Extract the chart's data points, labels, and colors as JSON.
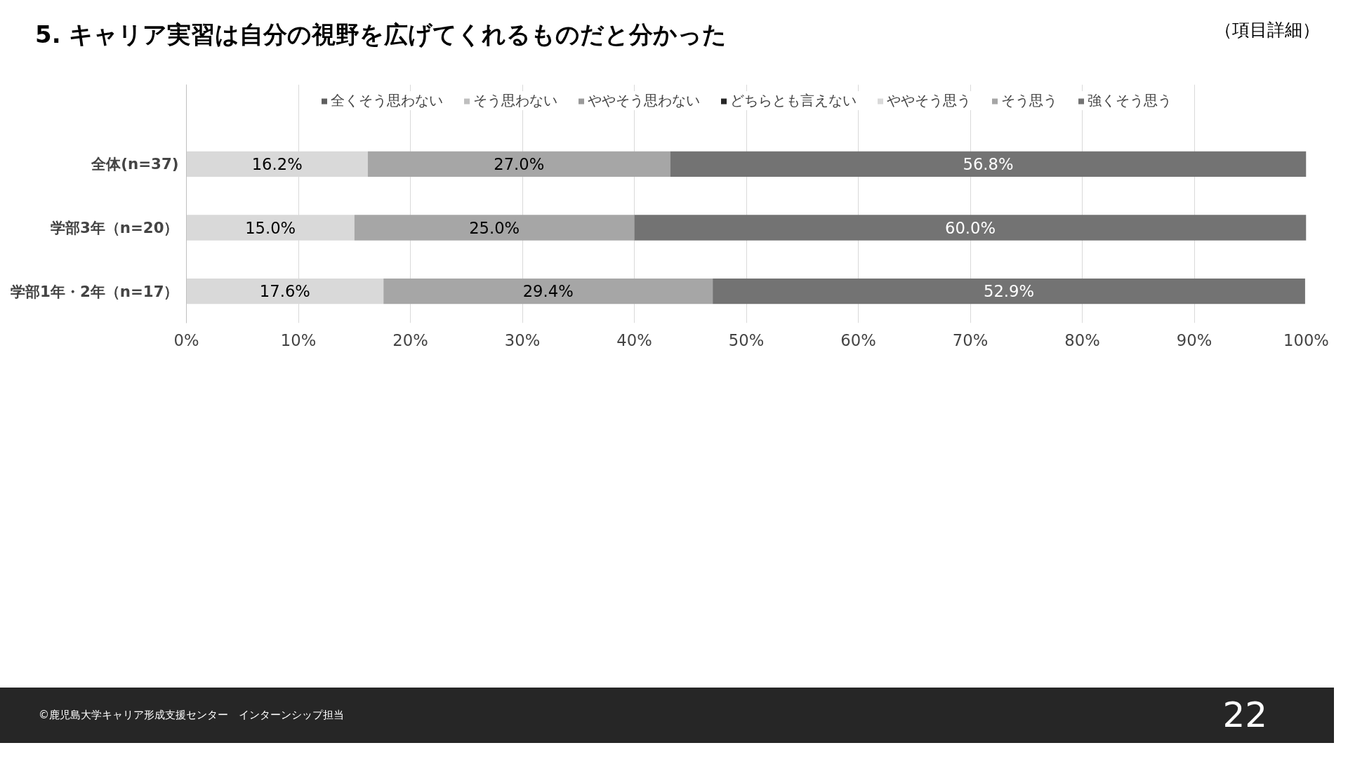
{
  "chart_data": {
    "type": "bar",
    "orientation": "horizontal",
    "stacked": true,
    "title": "5. キャリア実習は自分の視野を広げてくれるものだと分かった",
    "subtitle": "（項目詳細）",
    "categories": [
      "全体(n=37)",
      "学部3年（n=20）",
      "学部1年・2年（n=17）"
    ],
    "series": [
      {
        "name": "全くそう思わない",
        "color": "#5f5f5f",
        "values": [
          0,
          0,
          0
        ]
      },
      {
        "name": "そう思わない",
        "color": "#bfbfbf",
        "values": [
          0,
          0,
          0
        ]
      },
      {
        "name": "ややそう思わない",
        "color": "#999999",
        "values": [
          0,
          0,
          0
        ]
      },
      {
        "name": "どちらとも言えない",
        "color": "#262626",
        "values": [
          0,
          0,
          0
        ]
      },
      {
        "name": "ややそう思う",
        "color": "#d9d9d9",
        "values": [
          16.2,
          15.0,
          17.6
        ],
        "value_labels": [
          "16.2%",
          "15.0%",
          "17.6%"
        ]
      },
      {
        "name": "そう思う",
        "color": "#a6a6a6",
        "values": [
          27.0,
          25.0,
          29.4
        ],
        "value_labels": [
          "27.0%",
          "25.0%",
          "29.4%"
        ]
      },
      {
        "name": "強くそう思う",
        "color": "#737373",
        "values": [
          56.8,
          60.0,
          52.9
        ],
        "value_labels": [
          "56.8%",
          "60.0%",
          "52.9%"
        ]
      }
    ],
    "xlim": [
      0,
      100
    ],
    "xticks": [
      {
        "value": 0,
        "label": "0%"
      },
      {
        "value": 10,
        "label": "10%"
      },
      {
        "value": 20,
        "label": "20%"
      },
      {
        "value": 30,
        "label": "30%"
      },
      {
        "value": 40,
        "label": "40%"
      },
      {
        "value": 50,
        "label": "50%"
      },
      {
        "value": 60,
        "label": "60%"
      },
      {
        "value": 70,
        "label": "70%"
      },
      {
        "value": 80,
        "label": "80%"
      },
      {
        "value": 90,
        "label": "90%"
      },
      {
        "value": 100,
        "label": "100%"
      }
    ],
    "grid": "x",
    "legend": "top",
    "annotations": [
      "©鹿児島大学キャリア形成支援センター　インターンシップ担当",
      "22"
    ]
  }
}
